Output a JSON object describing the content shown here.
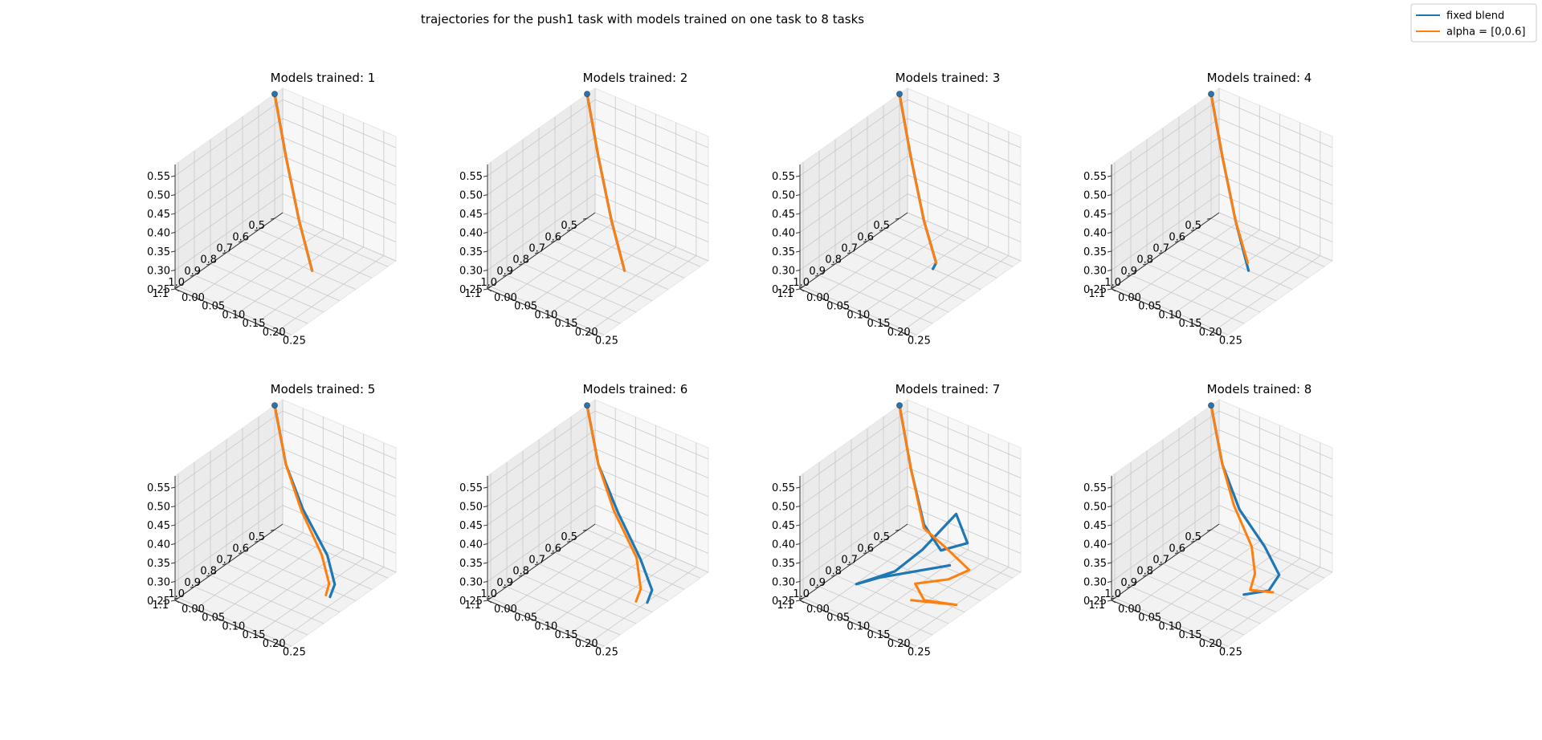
{
  "figure": {
    "title": "trajectories for the push1 task with models trained on one task to 8 tasks"
  },
  "legend": {
    "placement": "top-right",
    "items": [
      {
        "label": "fixed blend",
        "color": "#1f77b4"
      },
      {
        "label": "alpha = [0,0.6]",
        "color": "#ff7f0e"
      }
    ]
  },
  "axes": {
    "x_ticks": [
      "0.00",
      "0.05",
      "0.10",
      "0.15",
      "0.20",
      "0.25"
    ],
    "y_ticks": [
      "0.5",
      "0.6",
      "0.7",
      "0.8",
      "0.9",
      "1.0",
      "1.1"
    ],
    "z_ticks": [
      "0.25",
      "0.30",
      "0.35",
      "0.40",
      "0.45",
      "0.50",
      "0.55"
    ]
  },
  "chart_data": [
    {
      "type": "line",
      "title": "Models trained: 1",
      "models_trained": 1,
      "grid": true,
      "xlim": [
        0,
        0.28
      ],
      "ylim": [
        0.45,
        1.12
      ],
      "zlim": [
        0.25,
        0.58
      ],
      "start_point": [
        0.0,
        0.5,
        0.58
      ],
      "series": [
        {
          "name": "fixed blend",
          "color": "#1f77b4",
          "points": [
            [
              0,
              0.5,
              0.58
            ],
            [
              0.04,
              0.53,
              0.44
            ],
            [
              0.1,
              0.6,
              0.32
            ],
            [
              0.18,
              0.72,
              0.26
            ]
          ]
        },
        {
          "name": "alpha = [0,0.6]",
          "color": "#ff7f0e",
          "points": [
            [
              0,
              0.5,
              0.58
            ],
            [
              0.04,
              0.53,
              0.44
            ],
            [
              0.1,
              0.6,
              0.32
            ],
            [
              0.18,
              0.72,
              0.26
            ]
          ]
        }
      ]
    },
    {
      "type": "line",
      "title": "Models trained: 2",
      "models_trained": 2,
      "grid": true,
      "xlim": [
        0,
        0.28
      ],
      "ylim": [
        0.45,
        1.12
      ],
      "zlim": [
        0.25,
        0.58
      ],
      "start_point": [
        0.0,
        0.5,
        0.58
      ],
      "series": [
        {
          "name": "fixed blend",
          "color": "#1f77b4",
          "points": [
            [
              0,
              0.5,
              0.58
            ],
            [
              0.04,
              0.53,
              0.44
            ],
            [
              0.1,
              0.6,
              0.32
            ],
            [
              0.18,
              0.72,
              0.26
            ]
          ]
        },
        {
          "name": "alpha = [0,0.6]",
          "color": "#ff7f0e",
          "points": [
            [
              0,
              0.5,
              0.58
            ],
            [
              0.04,
              0.53,
              0.44
            ],
            [
              0.1,
              0.6,
              0.32
            ],
            [
              0.18,
              0.72,
              0.26
            ]
          ]
        }
      ]
    },
    {
      "type": "line",
      "title": "Models trained: 3",
      "models_trained": 3,
      "grid": true,
      "xlim": [
        0,
        0.28
      ],
      "ylim": [
        0.45,
        1.12
      ],
      "zlim": [
        0.25,
        0.58
      ],
      "start_point": [
        0.0,
        0.5,
        0.58
      ],
      "series": [
        {
          "name": "fixed blend",
          "color": "#1f77b4",
          "points": [
            [
              0,
              0.5,
              0.58
            ],
            [
              0.04,
              0.53,
              0.44
            ],
            [
              0.1,
              0.6,
              0.32
            ],
            [
              0.17,
              0.7,
              0.27
            ],
            [
              0.17,
              0.72,
              0.26
            ]
          ]
        },
        {
          "name": "alpha = [0,0.6]",
          "color": "#ff7f0e",
          "points": [
            [
              0,
              0.5,
              0.58
            ],
            [
              0.04,
              0.53,
              0.44
            ],
            [
              0.1,
              0.6,
              0.32
            ],
            [
              0.17,
              0.7,
              0.27
            ]
          ]
        }
      ]
    },
    {
      "type": "line",
      "title": "Models trained: 4",
      "models_trained": 4,
      "grid": true,
      "xlim": [
        0,
        0.28
      ],
      "ylim": [
        0.45,
        1.12
      ],
      "zlim": [
        0.25,
        0.58
      ],
      "start_point": [
        0.0,
        0.5,
        0.58
      ],
      "series": [
        {
          "name": "fixed blend",
          "color": "#1f77b4",
          "points": [
            [
              0,
              0.5,
              0.58
            ],
            [
              0.04,
              0.53,
              0.44
            ],
            [
              0.1,
              0.6,
              0.32
            ],
            [
              0.18,
              0.72,
              0.26
            ]
          ]
        },
        {
          "name": "alpha = [0,0.6]",
          "color": "#ff7f0e",
          "points": [
            [
              0,
              0.5,
              0.58
            ],
            [
              0.04,
              0.53,
              0.44
            ],
            [
              0.1,
              0.6,
              0.32
            ],
            [
              0.17,
              0.7,
              0.27
            ]
          ]
        }
      ]
    },
    {
      "type": "line",
      "title": "Models trained: 5",
      "models_trained": 5,
      "grid": true,
      "xlim": [
        0,
        0.28
      ],
      "ylim": [
        0.45,
        1.12
      ],
      "zlim": [
        0.25,
        0.58
      ],
      "start_point": [
        0.0,
        0.5,
        0.58
      ],
      "series": [
        {
          "name": "fixed blend",
          "color": "#1f77b4",
          "points": [
            [
              0,
              0.5,
              0.58
            ],
            [
              0.04,
              0.53,
              0.45
            ],
            [
              0.09,
              0.55,
              0.36
            ],
            [
              0.17,
              0.6,
              0.29
            ],
            [
              0.22,
              0.68,
              0.26
            ],
            [
              0.24,
              0.76,
              0.26
            ]
          ]
        },
        {
          "name": "alpha = [0,0.6]",
          "color": "#ff7f0e",
          "points": [
            [
              0,
              0.5,
              0.58
            ],
            [
              0.04,
              0.53,
              0.45
            ],
            [
              0.09,
              0.56,
              0.36
            ],
            [
              0.16,
              0.61,
              0.29
            ],
            [
              0.21,
              0.69,
              0.26
            ],
            [
              0.23,
              0.76,
              0.26
            ]
          ]
        }
      ]
    },
    {
      "type": "line",
      "title": "Models trained: 6",
      "models_trained": 6,
      "grid": true,
      "xlim": [
        0,
        0.28
      ],
      "ylim": [
        0.45,
        1.12
      ],
      "zlim": [
        0.25,
        0.58
      ],
      "start_point": [
        0.0,
        0.5,
        0.58
      ],
      "series": [
        {
          "name": "fixed blend",
          "color": "#1f77b4",
          "points": [
            [
              0,
              0.5,
              0.58
            ],
            [
              0.04,
              0.53,
              0.45
            ],
            [
              0.1,
              0.56,
              0.36
            ],
            [
              0.18,
              0.62,
              0.29
            ],
            [
              0.24,
              0.7,
              0.26
            ],
            [
              0.26,
              0.78,
              0.26
            ]
          ]
        },
        {
          "name": "alpha = [0,0.6]",
          "color": "#ff7f0e",
          "points": [
            [
              0,
              0.5,
              0.58
            ],
            [
              0.04,
              0.53,
              0.45
            ],
            [
              0.09,
              0.56,
              0.36
            ],
            [
              0.17,
              0.62,
              0.29
            ],
            [
              0.22,
              0.72,
              0.26
            ],
            [
              0.24,
              0.8,
              0.26
            ]
          ]
        }
      ]
    },
    {
      "type": "line",
      "title": "Models trained: 7",
      "models_trained": 7,
      "grid": true,
      "xlim": [
        0,
        0.28
      ],
      "ylim": [
        0.45,
        1.12
      ],
      "zlim": [
        0.25,
        0.58
      ],
      "start_point": [
        0.0,
        0.5,
        0.58
      ],
      "series": [
        {
          "name": "fixed blend",
          "color": "#1f77b4",
          "points": [
            [
              0,
              0.5,
              0.58
            ],
            [
              0.04,
              0.53,
              0.44
            ],
            [
              0.1,
              0.6,
              0.34
            ],
            [
              0.15,
              0.62,
              0.3
            ],
            [
              0.2,
              0.58,
              0.33
            ],
            [
              0.16,
              0.55,
              0.38
            ],
            [
              0.12,
              0.66,
              0.3
            ],
            [
              0.1,
              0.78,
              0.27
            ],
            [
              0.06,
              0.92,
              0.26
            ],
            [
              0.09,
              0.85,
              0.27
            ],
            [
              0.18,
              0.64,
              0.28
            ]
          ]
        },
        {
          "name": "alpha = [0,0.6]",
          "color": "#ff7f0e",
          "points": [
            [
              0,
              0.5,
              0.58
            ],
            [
              0.04,
              0.53,
              0.44
            ],
            [
              0.1,
              0.6,
              0.33
            ],
            [
              0.16,
              0.6,
              0.3
            ],
            [
              0.22,
              0.62,
              0.28
            ],
            [
              0.2,
              0.7,
              0.27
            ],
            [
              0.15,
              0.78,
              0.26
            ],
            [
              0.2,
              0.85,
              0.26
            ],
            [
              0.26,
              0.8,
              0.26
            ],
            [
              0.18,
              0.88,
              0.26
            ]
          ]
        }
      ]
    },
    {
      "type": "line",
      "title": "Models trained: 8",
      "models_trained": 8,
      "grid": true,
      "xlim": [
        0,
        0.28
      ],
      "ylim": [
        0.45,
        1.12
      ],
      "zlim": [
        0.25,
        0.58
      ],
      "start_point": [
        0.0,
        0.5,
        0.58
      ],
      "series": [
        {
          "name": "fixed blend",
          "color": "#1f77b4",
          "points": [
            [
              0,
              0.5,
              0.58
            ],
            [
              0.04,
              0.53,
              0.45
            ],
            [
              0.09,
              0.55,
              0.36
            ],
            [
              0.16,
              0.57,
              0.3
            ],
            [
              0.22,
              0.63,
              0.27
            ],
            [
              0.23,
              0.72,
              0.26
            ],
            [
              0.2,
              0.8,
              0.26
            ]
          ]
        },
        {
          "name": "alpha = [0,0.6]",
          "color": "#ff7f0e",
          "points": [
            [
              0,
              0.5,
              0.58
            ],
            [
              0.04,
              0.53,
              0.45
            ],
            [
              0.08,
              0.56,
              0.37
            ],
            [
              0.14,
              0.6,
              0.3
            ],
            [
              0.18,
              0.68,
              0.27
            ],
            [
              0.2,
              0.76,
              0.26
            ],
            [
              0.24,
              0.72,
              0.26
            ]
          ]
        }
      ]
    }
  ]
}
